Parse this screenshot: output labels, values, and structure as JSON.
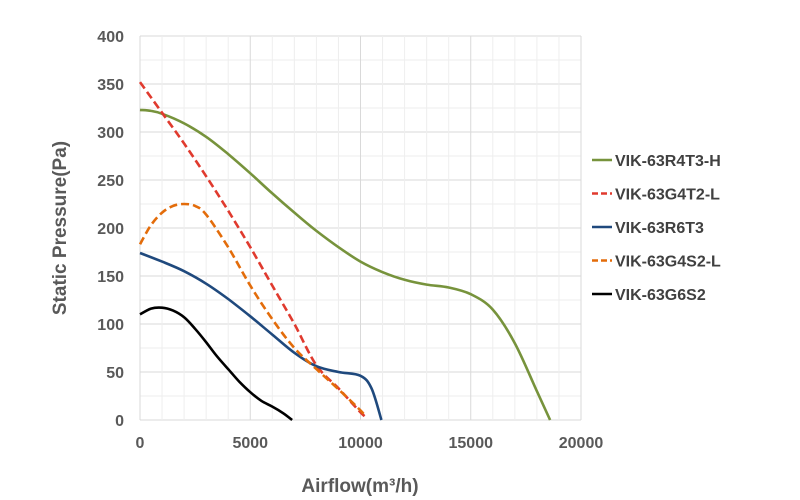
{
  "chart_data": {
    "type": "line",
    "xlabel": "Airflow(m³/h)",
    "ylabel": "Static Pressure(Pa)",
    "xlim": [
      0,
      20000
    ],
    "ylim": [
      0,
      400
    ],
    "xticks": [
      0,
      5000,
      10000,
      15000,
      20000
    ],
    "yticks": [
      0,
      50,
      100,
      150,
      200,
      250,
      300,
      350,
      400
    ],
    "x_tick_labels": [
      "0",
      "5000",
      "10000",
      "15000",
      "20000"
    ],
    "y_tick_labels": [
      "0",
      "50",
      "100",
      "150",
      "200",
      "250",
      "300",
      "350",
      "400"
    ],
    "grid": true,
    "legend_position": "right",
    "series": [
      {
        "name": "VIK-63R4T3-H",
        "color": "#77933c",
        "dash": "solid",
        "x": [
          0,
          500,
          1000,
          2000,
          3000,
          4000,
          5000,
          6000,
          7000,
          8000,
          9000,
          10000,
          11000,
          12000,
          13000,
          14000,
          15000,
          16000,
          17000,
          18000,
          18600
        ],
        "y": [
          323,
          322,
          319,
          309,
          295,
          277,
          257,
          236,
          216,
          197,
          180,
          165,
          154,
          146,
          141,
          138,
          131,
          115,
          80,
          30,
          0
        ]
      },
      {
        "name": "VIK-63G4T2-L",
        "color": "#e03a2e",
        "dash": "dash",
        "x": [
          0,
          1000,
          2000,
          3000,
          4000,
          5000,
          6000,
          7000,
          8000,
          9000,
          10000,
          10300
        ],
        "y": [
          352,
          320,
          288,
          254,
          218,
          180,
          140,
          100,
          57,
          33,
          8,
          2
        ]
      },
      {
        "name": "VIK-63R6T3",
        "color": "#1f497d",
        "dash": "solid",
        "x": [
          0,
          1000,
          2000,
          3000,
          4000,
          5000,
          6000,
          7000,
          8000,
          9000,
          10000,
          10500,
          10950
        ],
        "y": [
          174,
          165,
          155,
          142,
          126,
          108,
          89,
          70,
          56,
          50,
          46,
          33,
          0
        ]
      },
      {
        "name": "VIK-63G4S2-L",
        "color": "#e36c0a",
        "dash": "dash",
        "x": [
          0,
          500,
          1000,
          1500,
          2000,
          2500,
          3000,
          4000,
          5000,
          6000,
          7000,
          8000,
          9000,
          10000,
          10200
        ],
        "y": [
          183,
          203,
          216,
          223,
          225,
          223,
          214,
          180,
          140,
          105,
          75,
          53,
          32,
          10,
          4
        ]
      },
      {
        "name": "VIK-63G6S2",
        "color": "#000000",
        "dash": "solid",
        "x": [
          0,
          500,
          1000,
          1500,
          2000,
          2500,
          3000,
          3500,
          4000,
          4500,
          5000,
          5500,
          6000,
          6500,
          6900
        ],
        "y": [
          110,
          116,
          117,
          114,
          107,
          95,
          81,
          66,
          53,
          40,
          29,
          20,
          14,
          7,
          0
        ]
      }
    ]
  }
}
